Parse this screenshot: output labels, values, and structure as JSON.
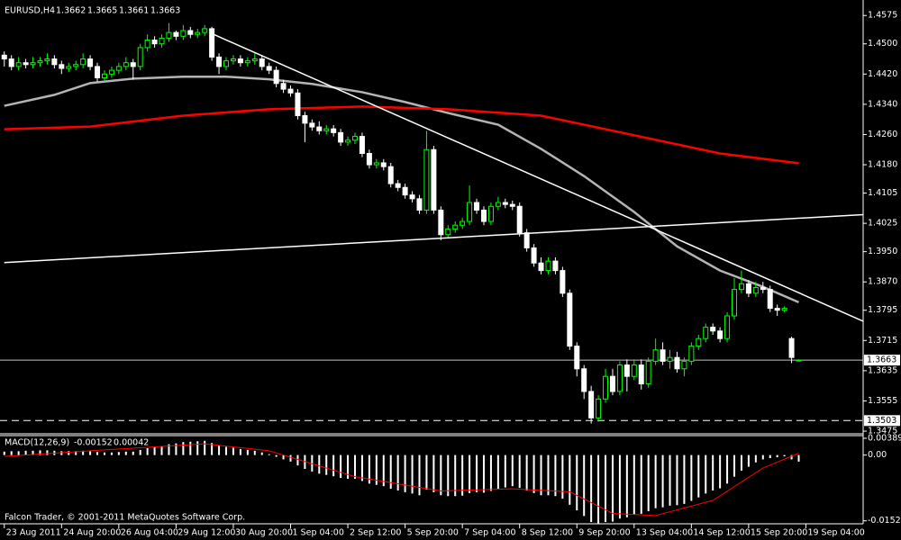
{
  "chart_data": [
    {
      "type": "candlestick",
      "title": "EURUSD,H4",
      "open": [
        1.447,
        1.446,
        1.444,
        1.445,
        1.4445,
        1.445,
        1.4455,
        1.446,
        1.4445,
        1.4435,
        1.444,
        1.4445,
        1.446,
        1.444,
        1.441,
        1.442,
        1.443,
        1.444,
        1.445,
        1.444,
        1.449,
        1.451,
        1.45,
        1.4515,
        1.453,
        1.452,
        1.4535,
        1.4525,
        1.453,
        1.454,
        1.4465,
        1.444,
        1.4455,
        1.446,
        1.445,
        1.4455,
        1.446,
        1.444,
        1.443,
        1.4395,
        1.438,
        1.437,
        1.431,
        1.429,
        1.428,
        1.427,
        1.4275,
        1.4265,
        1.424,
        1.4245,
        1.4255,
        1.421,
        1.418,
        1.4185,
        1.4175,
        1.413,
        1.412,
        1.41,
        1.409,
        1.406,
        1.422,
        1.406,
        1.3995,
        1.401,
        1.402,
        1.403,
        1.408,
        1.406,
        1.403,
        1.407,
        1.408,
        1.4075,
        1.407,
        1.4,
        1.396,
        1.392,
        1.39,
        1.3925,
        1.39,
        1.384,
        1.37,
        1.364,
        1.358,
        1.351,
        1.356,
        1.362,
        1.358,
        1.365,
        1.362,
        1.365,
        1.36,
        1.366,
        1.369,
        1.366,
        1.367,
        1.364,
        1.366,
        1.37,
        1.372,
        1.375,
        1.374,
        1.372,
        1.378,
        1.385,
        1.3865,
        1.384,
        1.3855,
        1.385,
        1.38,
        1.3795,
        1.372,
        1.3662
      ],
      "high": [
        1.448,
        1.447,
        1.4465,
        1.446,
        1.4465,
        1.4465,
        1.4475,
        1.447,
        1.4455,
        1.445,
        1.4455,
        1.4475,
        1.447,
        1.445,
        1.443,
        1.444,
        1.445,
        1.4465,
        1.446,
        1.45,
        1.4525,
        1.452,
        1.4525,
        1.4555,
        1.4535,
        1.455,
        1.4545,
        1.454,
        1.455,
        1.4545,
        1.4475,
        1.4465,
        1.447,
        1.447,
        1.4465,
        1.4475,
        1.447,
        1.445,
        1.444,
        1.4405,
        1.439,
        1.438,
        1.432,
        1.43,
        1.4295,
        1.4285,
        1.4285,
        1.4275,
        1.4255,
        1.4265,
        1.4265,
        1.422,
        1.4195,
        1.4195,
        1.4185,
        1.414,
        1.413,
        1.411,
        1.41,
        1.427,
        1.423,
        1.407,
        1.402,
        1.403,
        1.404,
        1.4125,
        1.409,
        1.407,
        1.408,
        1.4095,
        1.409,
        1.4085,
        1.408,
        1.401,
        1.397,
        1.3935,
        1.3935,
        1.3935,
        1.391,
        1.385,
        1.371,
        1.365,
        1.3595,
        1.357,
        1.364,
        1.364,
        1.366,
        1.3665,
        1.3665,
        1.3665,
        1.367,
        1.372,
        1.371,
        1.369,
        1.3685,
        1.367,
        1.371,
        1.373,
        1.376,
        1.376,
        1.375,
        1.379,
        1.388,
        1.39,
        1.3875,
        1.387,
        1.387,
        1.386,
        1.381,
        1.3805,
        1.3725,
        1.3665
      ],
      "low": [
        1.444,
        1.443,
        1.443,
        1.4435,
        1.4435,
        1.444,
        1.4445,
        1.4435,
        1.442,
        1.4425,
        1.443,
        1.4435,
        1.443,
        1.44,
        1.44,
        1.441,
        1.442,
        1.443,
        1.4405,
        1.443,
        1.448,
        1.449,
        1.449,
        1.4505,
        1.451,
        1.451,
        1.4515,
        1.4515,
        1.452,
        1.4455,
        1.442,
        1.443,
        1.4445,
        1.444,
        1.444,
        1.4445,
        1.443,
        1.442,
        1.4385,
        1.437,
        1.436,
        1.43,
        1.424,
        1.427,
        1.426,
        1.426,
        1.4255,
        1.423,
        1.423,
        1.4235,
        1.42,
        1.417,
        1.417,
        1.4165,
        1.412,
        1.411,
        1.409,
        1.408,
        1.405,
        1.405,
        1.405,
        1.398,
        1.3985,
        1.4,
        1.401,
        1.402,
        1.405,
        1.402,
        1.402,
        1.406,
        1.4065,
        1.406,
        1.399,
        1.395,
        1.391,
        1.389,
        1.389,
        1.389,
        1.383,
        1.369,
        1.362,
        1.356,
        1.3495,
        1.35,
        1.355,
        1.357,
        1.357,
        1.358,
        1.361,
        1.3585,
        1.359,
        1.365,
        1.365,
        1.364,
        1.363,
        1.362,
        1.365,
        1.369,
        1.371,
        1.373,
        1.371,
        1.371,
        1.377,
        1.384,
        1.383,
        1.383,
        1.384,
        1.379,
        1.378,
        1.379,
        1.3655,
        1.3661
      ],
      "close": [
        1.446,
        1.444,
        1.445,
        1.4445,
        1.445,
        1.4455,
        1.446,
        1.4445,
        1.4435,
        1.444,
        1.4445,
        1.446,
        1.444,
        1.441,
        1.442,
        1.443,
        1.444,
        1.445,
        1.444,
        1.449,
        1.451,
        1.45,
        1.4515,
        1.453,
        1.452,
        1.4535,
        1.4525,
        1.453,
        1.454,
        1.4465,
        1.444,
        1.4455,
        1.446,
        1.445,
        1.4455,
        1.446,
        1.444,
        1.443,
        1.4395,
        1.438,
        1.437,
        1.431,
        1.429,
        1.428,
        1.427,
        1.4275,
        1.4265,
        1.424,
        1.4245,
        1.4255,
        1.421,
        1.418,
        1.4185,
        1.4175,
        1.413,
        1.412,
        1.41,
        1.409,
        1.406,
        1.422,
        1.406,
        1.3995,
        1.401,
        1.402,
        1.403,
        1.408,
        1.406,
        1.403,
        1.407,
        1.408,
        1.4075,
        1.407,
        1.4,
        1.396,
        1.392,
        1.39,
        1.3925,
        1.39,
        1.384,
        1.37,
        1.364,
        1.358,
        1.351,
        1.356,
        1.362,
        1.358,
        1.365,
        1.362,
        1.365,
        1.36,
        1.366,
        1.369,
        1.366,
        1.367,
        1.364,
        1.366,
        1.37,
        1.372,
        1.375,
        1.374,
        1.372,
        1.378,
        1.385,
        1.3865,
        1.384,
        1.3855,
        1.385,
        1.38,
        1.3795,
        1.38,
        1.367,
        1.3663
      ],
      "up_color": "#00ff00",
      "down_color": "#ffffff",
      "xlim": [
        -0.6,
        120
      ],
      "ylim": [
        1.3468,
        1.4616
      ],
      "yticks": [
        1.4575,
        {
          "value": 1.45,
          "label": "1.4500"
        },
        {
          "value": 1.442,
          "label": "1.4420"
        },
        {
          "value": 1.434,
          "label": "1.4340"
        },
        {
          "value": 1.426,
          "label": "1.4260"
        },
        {
          "value": 1.418,
          "label": "1.4180"
        },
        1.4105,
        1.4025,
        {
          "value": 1.395,
          "label": "1.3950"
        },
        {
          "value": 1.387,
          "label": "1.3870"
        },
        1.3795,
        1.3715,
        1.3635,
        1.3555,
        1.3475
      ],
      "xticks": [
        {
          "value": 0,
          "label": "23 Aug 2011"
        },
        {
          "value": 8,
          "label": "24 Aug 20:00"
        },
        {
          "value": 16,
          "label": "26 Aug 04:00"
        },
        {
          "value": 24,
          "label": "29 Aug 12:00"
        },
        {
          "value": 32,
          "label": "30 Aug 20:00"
        },
        {
          "value": 40,
          "label": "1 Sep 04:00"
        },
        {
          "value": 48,
          "label": "2 Sep 12:00"
        },
        {
          "value": 56,
          "label": "5 Sep 20:00"
        },
        {
          "value": 64,
          "label": "7 Sep 04:00"
        },
        {
          "value": 72,
          "label": "8 Sep 12:00"
        },
        {
          "value": 80,
          "label": "9 Sep 20:00"
        },
        {
          "value": 88,
          "label": "13 Sep 04:00"
        },
        {
          "value": 96,
          "label": "14 Sep 12:00"
        },
        {
          "value": 104,
          "label": "15 Sep 20:00"
        },
        {
          "value": 112,
          "label": "19 Sep 04:00"
        }
      ],
      "overlays": [
        {
          "color": "#b4b4b4",
          "x": [
            0,
            7,
            12,
            18,
            25,
            31,
            37,
            43,
            50,
            56,
            62,
            69,
            75,
            81,
            88,
            94,
            100,
            106,
            111
          ],
          "values": [
            1.4336,
            1.4365,
            1.4396,
            1.4408,
            1.4413,
            1.4413,
            1.4406,
            1.4394,
            1.4372,
            1.4346,
            1.4317,
            1.4286,
            1.4222,
            1.415,
            1.4055,
            1.3964,
            1.39,
            1.3857,
            1.3816
          ]
        },
        {
          "color": "#ff0000",
          "x": [
            0,
            12,
            25,
            37,
            50,
            62,
            75,
            88,
            100,
            111
          ],
          "values": [
            1.4274,
            1.4281,
            1.431,
            1.4327,
            1.4334,
            1.4327,
            1.431,
            1.4258,
            1.421,
            1.4184
          ]
        }
      ],
      "trendlines": [
        {
          "color": "#ffffff",
          "x": [
            29,
            120
          ],
          "values": [
            1.4527,
            1.3766
          ]
        },
        {
          "color": "#ffffff",
          "x": [
            0,
            120
          ],
          "values": [
            1.3921,
            1.4048
          ]
        }
      ],
      "hlines": [
        {
          "value": 1.3663,
          "color": "#c0c0c0",
          "dashed": false
        },
        {
          "value": 1.3503,
          "color": "#ffffff",
          "dashed": true
        }
      ],
      "copyright": "Falcon Trader, © 2001-2011 MetaQuotes Software Corp."
    },
    {
      "type": "macd",
      "title": "MACD(12,26,9)",
      "values": [
        0.0008,
        0.0009,
        0.0009,
        0.001,
        0.001,
        0.0011,
        0.0011,
        0.001,
        0.0009,
        0.0009,
        0.0009,
        0.001,
        0.0009,
        0.0007,
        0.0006,
        0.0006,
        0.0007,
        0.0008,
        0.0008,
        0.0012,
        0.0016,
        0.0018,
        0.0021,
        0.0025,
        0.0027,
        0.003,
        0.0031,
        0.0032,
        0.0033,
        0.0028,
        0.0022,
        0.0019,
        0.0017,
        0.0014,
        0.0012,
        0.001,
        0.0006,
        0.0002,
        -0.0004,
        -0.001,
        -0.0015,
        -0.0024,
        -0.0032,
        -0.0038,
        -0.0043,
        -0.0046,
        -0.0049,
        -0.0053,
        -0.0055,
        -0.0055,
        -0.006,
        -0.0066,
        -0.0069,
        -0.0072,
        -0.0078,
        -0.0082,
        -0.0086,
        -0.0089,
        -0.0093,
        -0.008,
        -0.0086,
        -0.0093,
        -0.0095,
        -0.0095,
        -0.0094,
        -0.0088,
        -0.0086,
        -0.0087,
        -0.0083,
        -0.0078,
        -0.0075,
        -0.0072,
        -0.0076,
        -0.0082,
        -0.0088,
        -0.0093,
        -0.0093,
        -0.0095,
        -0.0101,
        -0.0115,
        -0.0128,
        -0.0141,
        -0.0155,
        -0.0158,
        -0.0155,
        -0.0154,
        -0.0147,
        -0.0144,
        -0.0138,
        -0.0136,
        -0.013,
        -0.0123,
        -0.0121,
        -0.0117,
        -0.0116,
        -0.0113,
        -0.0106,
        -0.0098,
        -0.0089,
        -0.0082,
        -0.0077,
        -0.0066,
        -0.005,
        -0.0036,
        -0.0027,
        -0.0017,
        -0.001,
        -0.0007,
        -0.0005,
        -0.0003,
        -0.001,
        -0.00152
      ],
      "bar_color": "#ffffff",
      "signal": {
        "color": "#ff0000",
        "x": [
          0,
          12,
          28,
          37,
          49,
          61,
          71,
          79,
          85,
          91,
          99,
          106,
          111
        ],
        "values": [
          -0.0003,
          0.001,
          0.0026,
          0.001,
          -0.005,
          -0.0083,
          -0.0078,
          -0.0085,
          -0.0135,
          -0.014,
          -0.0105,
          -0.003,
          0.00042
        ]
      },
      "xlim": [
        -0.6,
        120
      ],
      "ylim": [
        -0.0157,
        0.0043
      ],
      "yticks": [
        0.00389,
        {
          "value": 0,
          "label": "0.00"
        },
        -0.01522
      ]
    }
  ]
}
